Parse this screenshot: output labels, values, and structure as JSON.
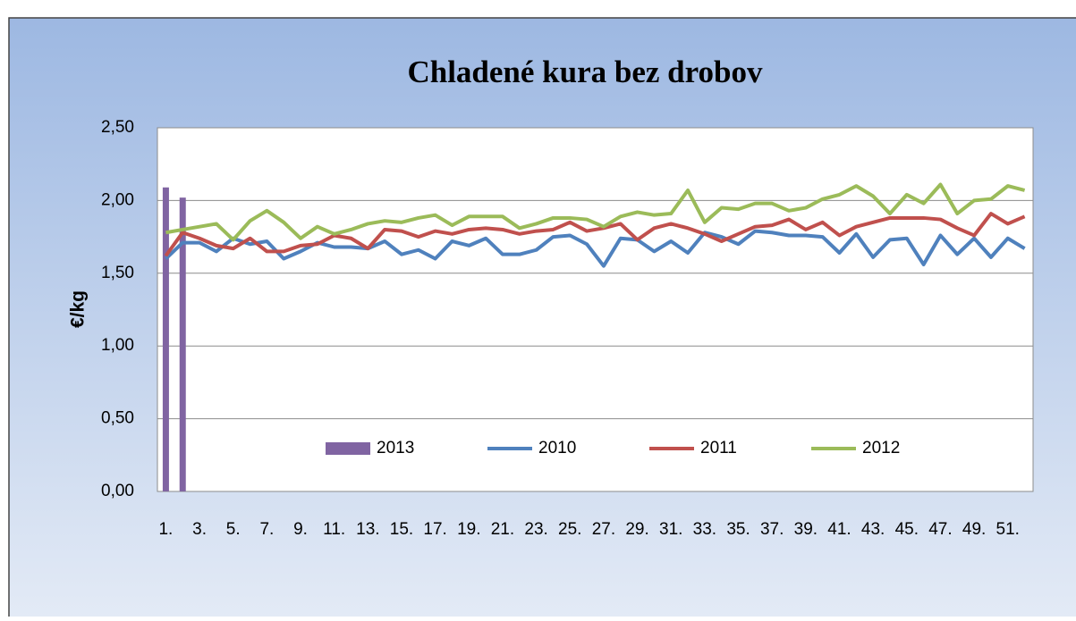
{
  "chart_data": {
    "type": "line",
    "title": "Chladené kura bez drobov",
    "y_label": "€/kg",
    "categories": [
      "1.",
      null,
      "3.",
      null,
      "5.",
      null,
      "7.",
      null,
      "9.",
      null,
      "11.",
      null,
      "13.",
      null,
      "15.",
      null,
      "17.",
      null,
      "19.",
      null,
      "21.",
      null,
      "23.",
      null,
      "25.",
      null,
      "27.",
      null,
      "29.",
      null,
      "31.",
      null,
      "33.",
      null,
      "35.",
      null,
      "37.",
      null,
      "39.",
      null,
      "41.",
      null,
      "43.",
      null,
      "45.",
      null,
      "47.",
      null,
      "49.",
      null,
      "51.",
      null
    ],
    "series": [
      {
        "name": "2013",
        "type": "bar",
        "color": "#8064a2",
        "values": [
          2.09,
          2.02,
          null,
          null,
          null,
          null,
          null,
          null,
          null,
          null,
          null,
          null,
          null,
          null,
          null,
          null,
          null,
          null,
          null,
          null,
          null,
          null,
          null,
          null,
          null,
          null,
          null,
          null,
          null,
          null,
          null,
          null,
          null,
          null,
          null,
          null,
          null,
          null,
          null,
          null,
          null,
          null,
          null,
          null,
          null,
          null,
          null,
          null,
          null,
          null,
          null,
          null
        ]
      },
      {
        "name": "2010",
        "type": "line",
        "color": "#4f81bd",
        "values": [
          1.6,
          1.71,
          1.71,
          1.65,
          1.74,
          1.7,
          1.72,
          1.6,
          1.65,
          1.71,
          1.68,
          1.68,
          1.67,
          1.72,
          1.63,
          1.66,
          1.6,
          1.72,
          1.69,
          1.74,
          1.63,
          1.63,
          1.66,
          1.75,
          1.76,
          1.7,
          1.55,
          1.74,
          1.73,
          1.65,
          1.72,
          1.64,
          1.78,
          1.75,
          1.7,
          1.79,
          1.78,
          1.76,
          1.76,
          1.75,
          1.64,
          1.77,
          1.61,
          1.73,
          1.74,
          1.56,
          1.76,
          1.63,
          1.74,
          1.61,
          1.74,
          1.67
        ]
      },
      {
        "name": "2011",
        "type": "line",
        "color": "#c0504d",
        "values": [
          1.62,
          1.78,
          1.74,
          1.69,
          1.67,
          1.74,
          1.65,
          1.65,
          1.69,
          1.7,
          1.76,
          1.74,
          1.67,
          1.8,
          1.79,
          1.75,
          1.79,
          1.77,
          1.8,
          1.81,
          1.8,
          1.77,
          1.79,
          1.8,
          1.85,
          1.79,
          1.81,
          1.84,
          1.73,
          1.81,
          1.84,
          1.81,
          1.77,
          1.72,
          1.77,
          1.82,
          1.83,
          1.87,
          1.8,
          1.85,
          1.76,
          1.82,
          1.85,
          1.88,
          1.88,
          1.88,
          1.87,
          1.81,
          1.76,
          1.91,
          1.84,
          1.89
        ]
      },
      {
        "name": "2012",
        "type": "line",
        "color": "#9bbb59",
        "values": [
          1.78,
          1.8,
          1.82,
          1.84,
          1.73,
          1.86,
          1.93,
          1.85,
          1.74,
          1.82,
          1.77,
          1.8,
          1.84,
          1.86,
          1.85,
          1.88,
          1.9,
          1.83,
          1.89,
          1.89,
          1.89,
          1.81,
          1.84,
          1.88,
          1.88,
          1.87,
          1.82,
          1.89,
          1.92,
          1.9,
          1.91,
          2.07,
          1.85,
          1.95,
          1.94,
          1.98,
          1.98,
          1.93,
          1.95,
          2.01,
          2.04,
          2.1,
          2.03,
          1.91,
          2.04,
          1.98,
          2.11,
          1.91,
          2.0,
          2.01,
          2.1,
          2.07
        ]
      }
    ],
    "ylim": [
      0,
      2.5
    ],
    "yticks": [
      {
        "value": 0,
        "label": "0,00"
      },
      {
        "value": 0.5,
        "label": "0,50"
      },
      {
        "value": 1,
        "label": "1,00"
      },
      {
        "value": 1.5,
        "label": "1,50"
      },
      {
        "value": 2,
        "label": "2,00"
      },
      {
        "value": 2.5,
        "label": "2,50"
      }
    ],
    "grid": true,
    "legend": "bottom"
  }
}
